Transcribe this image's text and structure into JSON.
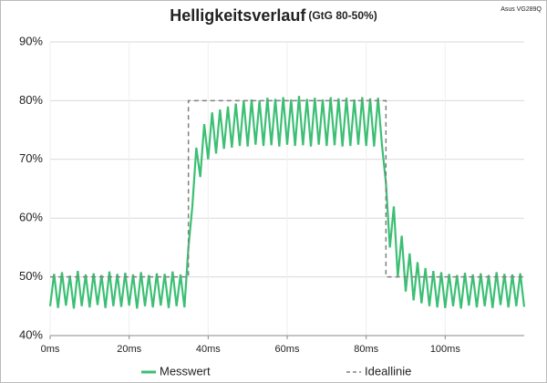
{
  "chart_data": {
    "type": "line",
    "title": "Helligkeitsverlauf",
    "subtitle": "(GtG 80-50%)",
    "annotation": "Asus VG289Q",
    "xlim": [
      0,
      120
    ],
    "xticks": [
      {
        "value": 0,
        "label": "0ms"
      },
      {
        "value": 20,
        "label": "20ms"
      },
      {
        "value": 40,
        "label": "40ms"
      },
      {
        "value": 60,
        "label": "60ms"
      },
      {
        "value": 80,
        "label": "80ms"
      },
      {
        "value": 100,
        "label": "100ms"
      }
    ],
    "ylim": [
      40,
      90
    ],
    "yticks": [
      {
        "value": 40,
        "label": "40%"
      },
      {
        "value": 50,
        "label": "50%"
      },
      {
        "value": 60,
        "label": "60%"
      },
      {
        "value": 70,
        "label": "70%"
      },
      {
        "value": 80,
        "label": "80%"
      },
      {
        "value": 90,
        "label": "90%"
      }
    ],
    "grid": true,
    "legend": "bottom",
    "series": [
      {
        "name": "Messwert",
        "color": "#3cbf74",
        "dash": false,
        "x": [
          0,
          1,
          2,
          3,
          4,
          5,
          6,
          7,
          8,
          9,
          10,
          11,
          12,
          13,
          14,
          15,
          16,
          17,
          18,
          19,
          20,
          21,
          22,
          23,
          24,
          25,
          26,
          27,
          28,
          29,
          30,
          31,
          32,
          33,
          34,
          35,
          36,
          37,
          38,
          39,
          40,
          41,
          42,
          43,
          44,
          45,
          46,
          47,
          48,
          49,
          50,
          51,
          52,
          53,
          54,
          55,
          56,
          57,
          58,
          59,
          60,
          61,
          62,
          63,
          64,
          65,
          66,
          67,
          68,
          69,
          70,
          71,
          72,
          73,
          74,
          75,
          76,
          77,
          78,
          79,
          80,
          81,
          82,
          83,
          84,
          85,
          86,
          87,
          88,
          89,
          90,
          91,
          92,
          93,
          94,
          95,
          96,
          97,
          98,
          99,
          100,
          101,
          102,
          103,
          104,
          105,
          106,
          107,
          108,
          109,
          110,
          111,
          112,
          113,
          114,
          115,
          116,
          117,
          118,
          119,
          120
        ],
        "values": [
          45,
          50.5,
          44.7,
          50.8,
          45.1,
          50.2,
          44.6,
          51,
          45,
          50.4,
          44.8,
          50.6,
          45.2,
          50.3,
          44.7,
          50.9,
          45,
          50.5,
          44.9,
          50.7,
          45.1,
          50.4,
          44.6,
          50.8,
          45,
          50.3,
          44.8,
          50.6,
          45.1,
          50.5,
          44.7,
          50.9,
          45,
          50.4,
          44.8,
          55,
          62,
          72,
          67,
          76,
          70,
          78,
          71,
          78.5,
          71.8,
          79,
          72,
          79.5,
          72.3,
          80,
          72.2,
          80.2,
          72.5,
          80,
          72.3,
          80.5,
          72.4,
          80.3,
          72.2,
          80.6,
          72.5,
          80.2,
          72.3,
          80.8,
          72.4,
          80.3,
          72.2,
          80.5,
          72.5,
          80.2,
          72.3,
          80.6,
          72.4,
          80.4,
          72.2,
          80.5,
          72.3,
          80.2,
          72.5,
          80.6,
          72.3,
          80.4,
          72.2,
          80.5,
          72.4,
          66,
          55,
          62,
          50,
          57,
          47.5,
          54,
          46,
          52.5,
          45.5,
          51.5,
          45,
          51,
          44.8,
          50.8,
          44.7,
          50.5,
          45,
          50.3,
          44.6,
          50.7,
          45.1,
          50.4,
          44.8,
          50.6,
          45,
          50.3,
          44.7,
          50.8,
          45.2,
          50.5,
          44.8,
          50.4,
          45,
          50.6,
          44.9
        ]
      },
      {
        "name": "Ideallinie",
        "color": "#808080",
        "dash": true,
        "x": [
          0,
          35,
          35,
          85,
          85,
          120
        ],
        "values": [
          50,
          50,
          80,
          80,
          50,
          50
        ]
      }
    ]
  }
}
